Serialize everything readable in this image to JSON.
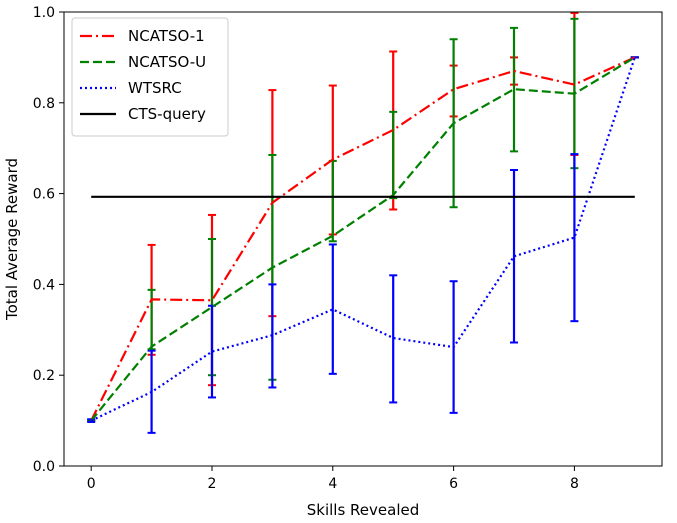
{
  "chart_data": {
    "type": "line",
    "title": "",
    "xlabel": "Skills Revealed",
    "ylabel": "Total Average Reward",
    "xlim": [
      -0.45,
      9.45
    ],
    "ylim": [
      0.0,
      1.0
    ],
    "xticks": [
      0,
      2,
      4,
      6,
      8
    ],
    "yticks": [
      0.0,
      0.2,
      0.4,
      0.6,
      0.8,
      1.0
    ],
    "grid": false,
    "legend_position": "top-left",
    "x": [
      0,
      1,
      2,
      3,
      4,
      5,
      6,
      7,
      8,
      9
    ],
    "series": [
      {
        "name": "NCATSO-1",
        "color": "#ff0000",
        "linestyle": "dashdot",
        "values": [
          0.1,
          0.367,
          0.365,
          0.58,
          0.675,
          0.74,
          0.83,
          0.87,
          0.84,
          0.9
        ],
        "err_low": [
          0.1,
          0.245,
          0.178,
          0.33,
          0.51,
          0.565,
          0.77,
          0.84,
          0.685,
          0.9
        ],
        "err_high": [
          0.1,
          0.487,
          0.553,
          0.828,
          0.838,
          0.913,
          0.882,
          0.9,
          0.998,
          0.9
        ]
      },
      {
        "name": "NCATSO-U",
        "color": "#008000",
        "linestyle": "dashed",
        "values": [
          0.1,
          0.263,
          0.35,
          0.437,
          0.507,
          0.597,
          0.755,
          0.83,
          0.82,
          0.9
        ],
        "err_low": [
          0.1,
          0.257,
          0.2,
          0.19,
          0.495,
          0.59,
          0.57,
          0.693,
          0.656,
          0.9
        ],
        "err_high": [
          0.1,
          0.388,
          0.5,
          0.685,
          0.672,
          0.78,
          0.94,
          0.965,
          0.985,
          0.9
        ]
      },
      {
        "name": "WTSRC",
        "color": "#0000ff",
        "linestyle": "dotted",
        "values": [
          0.1,
          0.163,
          0.252,
          0.288,
          0.345,
          0.282,
          0.262,
          0.462,
          0.503,
          0.9
        ],
        "err_low": [
          0.097,
          0.073,
          0.151,
          0.173,
          0.203,
          0.14,
          0.117,
          0.272,
          0.319,
          0.9
        ],
        "err_high": [
          0.103,
          0.254,
          0.353,
          0.4,
          0.488,
          0.42,
          0.407,
          0.652,
          0.687,
          0.9
        ]
      },
      {
        "name": "CTS-query",
        "color": "#000000",
        "linestyle": "solid",
        "values": [
          0.593,
          0.593,
          0.593,
          0.593,
          0.593,
          0.593,
          0.593,
          0.593,
          0.593,
          0.593
        ]
      }
    ]
  }
}
